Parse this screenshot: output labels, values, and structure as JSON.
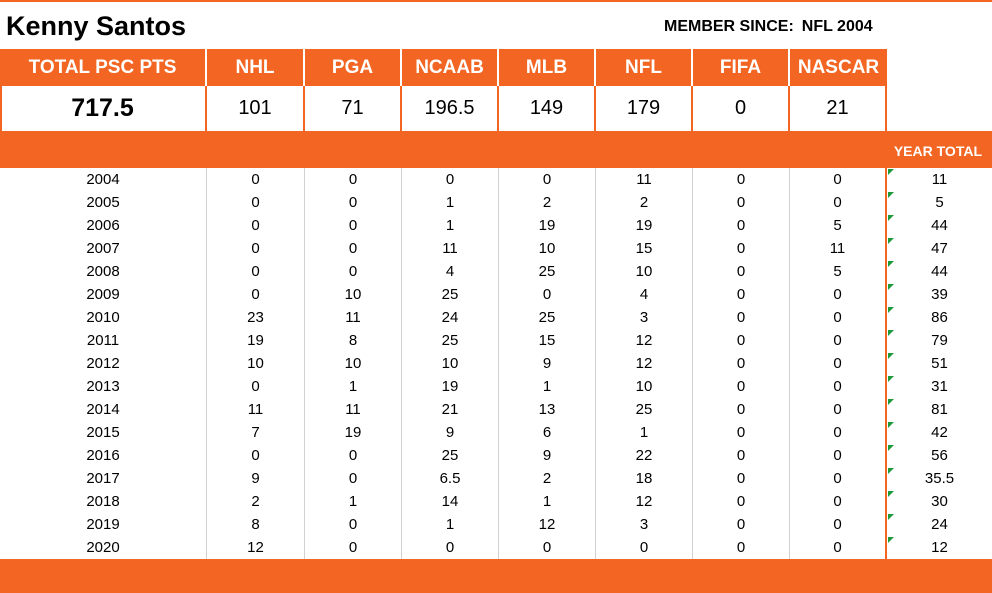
{
  "player": {
    "name": "Kenny Santos",
    "member_label": "MEMBER SINCE:",
    "member_value": "NFL 2004"
  },
  "header": {
    "total_label": "TOTAL PSC PTS",
    "leagues": [
      "NHL",
      "PGA",
      "NCAAB",
      "MLB",
      "NFL",
      "FIFA",
      "NASCAR"
    ],
    "year_total_label": "YEAR TOTAL"
  },
  "totals": {
    "total": "717.5",
    "leagues": [
      "101",
      "71",
      "196.5",
      "149",
      "179",
      "0",
      "21"
    ]
  },
  "years": [
    {
      "year": "2004",
      "values": [
        "0",
        "0",
        "0",
        "0",
        "11",
        "0",
        "0"
      ],
      "total": "11"
    },
    {
      "year": "2005",
      "values": [
        "0",
        "0",
        "1",
        "2",
        "2",
        "0",
        "0"
      ],
      "total": "5"
    },
    {
      "year": "2006",
      "values": [
        "0",
        "0",
        "1",
        "19",
        "19",
        "0",
        "5"
      ],
      "total": "44"
    },
    {
      "year": "2007",
      "values": [
        "0",
        "0",
        "11",
        "10",
        "15",
        "0",
        "11"
      ],
      "total": "47"
    },
    {
      "year": "2008",
      "values": [
        "0",
        "0",
        "4",
        "25",
        "10",
        "0",
        "5"
      ],
      "total": "44"
    },
    {
      "year": "2009",
      "values": [
        "0",
        "10",
        "25",
        "0",
        "4",
        "0",
        "0"
      ],
      "total": "39"
    },
    {
      "year": "2010",
      "values": [
        "23",
        "11",
        "24",
        "25",
        "3",
        "0",
        "0"
      ],
      "total": "86"
    },
    {
      "year": "2011",
      "values": [
        "19",
        "8",
        "25",
        "15",
        "12",
        "0",
        "0"
      ],
      "total": "79"
    },
    {
      "year": "2012",
      "values": [
        "10",
        "10",
        "10",
        "9",
        "12",
        "0",
        "0"
      ],
      "total": "51"
    },
    {
      "year": "2013",
      "values": [
        "0",
        "1",
        "19",
        "1",
        "10",
        "0",
        "0"
      ],
      "total": "31"
    },
    {
      "year": "2014",
      "values": [
        "11",
        "11",
        "21",
        "13",
        "25",
        "0",
        "0"
      ],
      "total": "81"
    },
    {
      "year": "2015",
      "values": [
        "7",
        "19",
        "9",
        "6",
        "1",
        "0",
        "0"
      ],
      "total": "42"
    },
    {
      "year": "2016",
      "values": [
        "0",
        "0",
        "25",
        "9",
        "22",
        "0",
        "0"
      ],
      "total": "56"
    },
    {
      "year": "2017",
      "values": [
        "9",
        "0",
        "6.5",
        "2",
        "18",
        "0",
        "0"
      ],
      "total": "35.5"
    },
    {
      "year": "2018",
      "values": [
        "2",
        "1",
        "14",
        "1",
        "12",
        "0",
        "0"
      ],
      "total": "30"
    },
    {
      "year": "2019",
      "values": [
        "8",
        "0",
        "1",
        "12",
        "3",
        "0",
        "0"
      ],
      "total": "24"
    },
    {
      "year": "2020",
      "values": [
        "12",
        "0",
        "0",
        "0",
        "0",
        "0",
        "0"
      ],
      "total": "12"
    }
  ],
  "colors": {
    "accent": "#f26522",
    "flag": "#1f9a3a"
  }
}
